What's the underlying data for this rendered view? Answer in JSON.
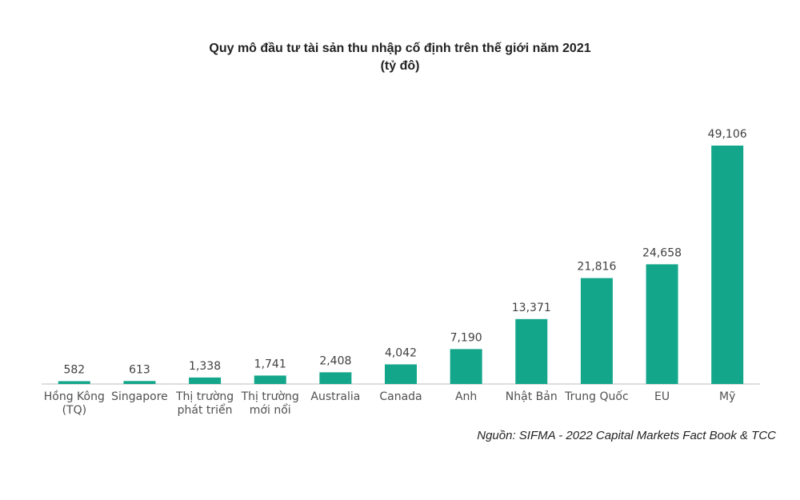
{
  "chart_data": {
    "type": "bar",
    "title": "Quy mô đầu tư tài sản thu nhập cố định trên thế giới năm 2021",
    "subtitle": "(tỷ đô)",
    "categories": [
      "Hồng Kông\n(TQ)",
      "Singapore",
      "Thị trường\nphát triển",
      "Thị trường\nmới nổi",
      "Australia",
      "Canada",
      "Anh",
      "Nhật Bản",
      "Trung Quốc",
      "EU",
      "Mỹ"
    ],
    "values": [
      582,
      613,
      1338,
      1741,
      2408,
      4042,
      7190,
      13371,
      21816,
      24658,
      49106
    ],
    "value_labels": [
      "582",
      "613",
      "1,338",
      "1,741",
      "2,408",
      "4,042",
      "7,190",
      "13,371",
      "21,816",
      "24,658",
      "49,106"
    ],
    "color": "#13a68a",
    "source": "Nguồn: SIFMA - 2022 Capital Markets Fact Book & TCC"
  }
}
